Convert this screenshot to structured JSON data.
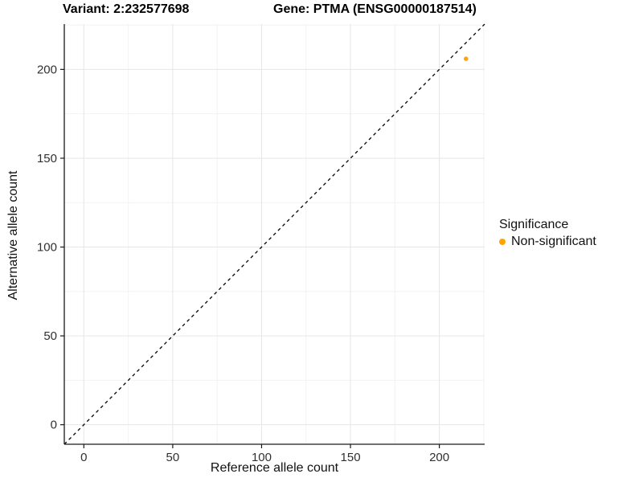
{
  "title": {
    "variant": "Variant: 2:232577698",
    "gene": "Gene: PTMA (ENSG00000187514)"
  },
  "chart_data": {
    "type": "scatter",
    "title": "Variant: 2:232577698   Gene: PTMA (ENSG00000187514)",
    "xlabel": "Reference allele count",
    "ylabel": "Alternative allele count",
    "xlim": [
      -11,
      225.5
    ],
    "ylim": [
      -11,
      225.5
    ],
    "x_ticks": [
      0,
      50,
      100,
      150,
      200
    ],
    "y_ticks": [
      0,
      50,
      100,
      150,
      200
    ],
    "x_minor_ticks": [
      25,
      75,
      125,
      175,
      225
    ],
    "y_minor_ticks": [
      25,
      75,
      125,
      175,
      225
    ],
    "grid": "major+minor",
    "identity_line": {
      "slope": 1,
      "intercept": 0,
      "style": "dashed"
    },
    "series": [
      {
        "name": "Non-significant",
        "color": "#FFA500",
        "points": [
          {
            "x": 215,
            "y": 206
          }
        ]
      }
    ]
  },
  "legend": {
    "title": "Significance",
    "position": "right",
    "items": [
      {
        "label": "Non-significant",
        "color": "#FFA500",
        "marker": "dot"
      }
    ]
  },
  "colors": {
    "point": "#FFA500",
    "grid_major": "#E6E6E6",
    "grid_minor": "#F2F2F2",
    "axis_line": "#1A1A1A",
    "tick_label": "#303030",
    "identity_line": "#000000",
    "background": "#FFFFFF"
  }
}
